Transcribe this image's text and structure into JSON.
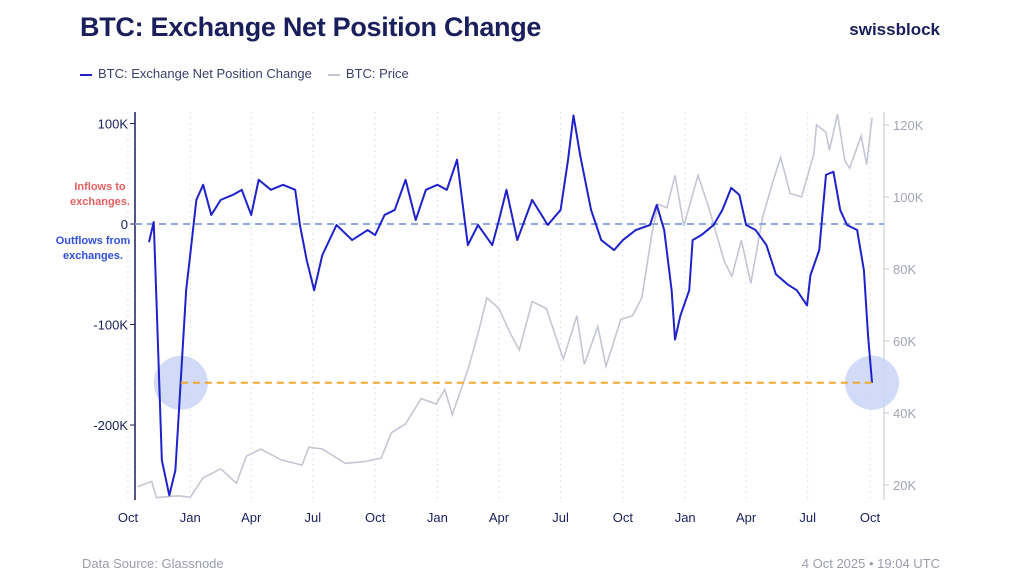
{
  "header": {
    "title": "BTC: Exchange Net Position Change",
    "brand": "swissblock"
  },
  "legend": [
    {
      "label": "BTC: Exchange Net Position Change",
      "color": "#1f22c9"
    },
    {
      "label": "BTC: Price",
      "color": "#c4c6d4"
    }
  ],
  "annotations": {
    "inflows": "Inflows to exchanges.",
    "outflows": "Outflows from exchanges.",
    "inflows_color": "#e86060",
    "outflows_color": "#3050d8"
  },
  "footer": {
    "source": "Data Source: Glassnode",
    "timestamp": "4 Oct 2025 • 19:04 UTC"
  },
  "chart_data": {
    "type": "line",
    "title": "BTC: Exchange Net Position Change",
    "x_ticks": [
      {
        "date": "2022-10-01",
        "label": "Oct"
      },
      {
        "date": "2023-01-01",
        "label": "Jan"
      },
      {
        "date": "2023-04-01",
        "label": "Apr"
      },
      {
        "date": "2023-07-01",
        "label": "Jul"
      },
      {
        "date": "2023-10-01",
        "label": "Oct"
      },
      {
        "date": "2024-01-01",
        "label": "Jan"
      },
      {
        "date": "2024-04-01",
        "label": "Apr"
      },
      {
        "date": "2024-07-01",
        "label": "Jul"
      },
      {
        "date": "2024-10-01",
        "label": "Oct"
      },
      {
        "date": "2025-01-01",
        "label": "Jan"
      },
      {
        "date": "2025-04-01",
        "label": "Apr"
      },
      {
        "date": "2025-07-01",
        "label": "Jul"
      },
      {
        "date": "2025-10-01",
        "label": "Oct"
      }
    ],
    "y_left": {
      "ticks": [
        {
          "v": 100000,
          "label": "100K"
        },
        {
          "v": 0,
          "label": "0"
        },
        {
          "v": -100000,
          "label": "-100K"
        },
        {
          "v": -200000,
          "label": "-200K"
        }
      ],
      "range": [
        -275000,
        112000
      ]
    },
    "y_right": {
      "ticks": [
        {
          "v": 120000,
          "label": "120K"
        },
        {
          "v": 100000,
          "label": "100K"
        },
        {
          "v": 80000,
          "label": "80K"
        },
        {
          "v": 60000,
          "label": "60K"
        },
        {
          "v": 40000,
          "label": "40K"
        },
        {
          "v": 20000,
          "label": "20K"
        }
      ],
      "range": [
        16000,
        123000
      ]
    },
    "grid": "vertical dotted at x ticks",
    "reference_lines": [
      {
        "value": 0,
        "color": "#8fa8e0",
        "style": "dashed"
      },
      {
        "value": -158000,
        "color": "#f0a830",
        "style": "dashed",
        "from": "2022-12-18",
        "to": "2025-10-04"
      }
    ],
    "highlights": [
      {
        "date": "2022-12-18",
        "value": -158000
      },
      {
        "date": "2025-10-04",
        "value": -158000
      }
    ],
    "series": [
      {
        "name": "BTC: Exchange Net Position Change",
        "axis": "left",
        "color": "#1f22c9",
        "points": [
          [
            "2022-11-01",
            -18000
          ],
          [
            "2022-11-08",
            2000
          ],
          [
            "2022-11-12",
            -75000
          ],
          [
            "2022-11-20",
            -235000
          ],
          [
            "2022-12-01",
            -270000
          ],
          [
            "2022-12-10",
            -245000
          ],
          [
            "2022-12-18",
            -155000
          ],
          [
            "2022-12-26",
            -65000
          ],
          [
            "2023-01-01",
            -30000
          ],
          [
            "2023-01-10",
            24000
          ],
          [
            "2023-01-20",
            39000
          ],
          [
            "2023-02-01",
            9000
          ],
          [
            "2023-02-15",
            24000
          ],
          [
            "2023-03-05",
            29000
          ],
          [
            "2023-03-18",
            34000
          ],
          [
            "2023-04-01",
            9000
          ],
          [
            "2023-04-12",
            44000
          ],
          [
            "2023-04-30",
            34000
          ],
          [
            "2023-05-18",
            39000
          ],
          [
            "2023-06-05",
            34000
          ],
          [
            "2023-06-12",
            -1000
          ],
          [
            "2023-06-22",
            -36000
          ],
          [
            "2023-07-03",
            -66000
          ],
          [
            "2023-07-15",
            -31000
          ],
          [
            "2023-08-05",
            -1000
          ],
          [
            "2023-08-28",
            -16000
          ],
          [
            "2023-09-20",
            -6000
          ],
          [
            "2023-10-01",
            -11000
          ],
          [
            "2023-10-15",
            9000
          ],
          [
            "2023-10-30",
            14000
          ],
          [
            "2023-11-15",
            44000
          ],
          [
            "2023-11-30",
            4000
          ],
          [
            "2023-12-15",
            34000
          ],
          [
            "2024-01-01",
            39000
          ],
          [
            "2024-01-15",
            34000
          ],
          [
            "2024-01-30",
            64000
          ],
          [
            "2024-02-15",
            -21000
          ],
          [
            "2024-03-01",
            -1000
          ],
          [
            "2024-03-22",
            -21000
          ],
          [
            "2024-04-01",
            4000
          ],
          [
            "2024-04-12",
            34000
          ],
          [
            "2024-04-28",
            -16000
          ],
          [
            "2024-05-20",
            24000
          ],
          [
            "2024-06-12",
            -1000
          ],
          [
            "2024-07-01",
            14000
          ],
          [
            "2024-07-12",
            64000
          ],
          [
            "2024-07-20",
            108000
          ],
          [
            "2024-07-30",
            68000
          ],
          [
            "2024-08-15",
            14000
          ],
          [
            "2024-08-30",
            -16000
          ],
          [
            "2024-09-18",
            -26000
          ],
          [
            "2024-10-01",
            -16000
          ],
          [
            "2024-10-20",
            -6000
          ],
          [
            "2024-11-10",
            -1000
          ],
          [
            "2024-11-20",
            19000
          ],
          [
            "2024-12-01",
            -6000
          ],
          [
            "2024-12-12",
            -66000
          ],
          [
            "2024-12-17",
            -115000
          ],
          [
            "2024-12-25",
            -91000
          ],
          [
            "2025-01-07",
            -66000
          ],
          [
            "2025-01-12",
            -16000
          ],
          [
            "2025-01-25",
            -11000
          ],
          [
            "2025-02-12",
            -1000
          ],
          [
            "2025-02-25",
            14000
          ],
          [
            "2025-03-10",
            36000
          ],
          [
            "2025-03-22",
            29000
          ],
          [
            "2025-04-01",
            -1000
          ],
          [
            "2025-04-15",
            -6000
          ],
          [
            "2025-05-01",
            -21000
          ],
          [
            "2025-05-15",
            -50000
          ],
          [
            "2025-06-01",
            -60000
          ],
          [
            "2025-06-15",
            -66000
          ],
          [
            "2025-06-30",
            -81000
          ],
          [
            "2025-07-05",
            -51000
          ],
          [
            "2025-07-18",
            -26000
          ],
          [
            "2025-07-28",
            49000
          ],
          [
            "2025-08-08",
            52000
          ],
          [
            "2025-08-18",
            14000
          ],
          [
            "2025-08-28",
            -1000
          ],
          [
            "2025-09-12",
            -6000
          ],
          [
            "2025-09-22",
            -46000
          ],
          [
            "2025-09-28",
            -110000
          ],
          [
            "2025-10-04",
            -158000
          ]
        ]
      },
      {
        "name": "BTC: Price",
        "axis": "right",
        "color": "#c4c6d4",
        "points": [
          [
            "2022-10-15",
            19500
          ],
          [
            "2022-11-05",
            21000
          ],
          [
            "2022-11-12",
            16500
          ],
          [
            "2022-12-15",
            17000
          ],
          [
            "2023-01-01",
            16600
          ],
          [
            "2023-01-20",
            22000
          ],
          [
            "2023-02-15",
            24500
          ],
          [
            "2023-03-10",
            20500
          ],
          [
            "2023-03-25",
            28000
          ],
          [
            "2023-04-15",
            30000
          ],
          [
            "2023-05-15",
            27000
          ],
          [
            "2023-06-15",
            25500
          ],
          [
            "2023-06-25",
            30500
          ],
          [
            "2023-07-15",
            30000
          ],
          [
            "2023-08-18",
            26000
          ],
          [
            "2023-09-15",
            26500
          ],
          [
            "2023-10-10",
            27500
          ],
          [
            "2023-10-25",
            34500
          ],
          [
            "2023-11-15",
            37000
          ],
          [
            "2023-12-08",
            44000
          ],
          [
            "2023-12-30",
            42500
          ],
          [
            "2024-01-12",
            46500
          ],
          [
            "2024-01-23",
            39500
          ],
          [
            "2024-02-15",
            52000
          ],
          [
            "2024-03-01",
            62000
          ],
          [
            "2024-03-14",
            72000
          ],
          [
            "2024-04-01",
            69000
          ],
          [
            "2024-04-18",
            62000
          ],
          [
            "2024-05-01",
            57500
          ],
          [
            "2024-05-20",
            71000
          ],
          [
            "2024-06-10",
            69000
          ],
          [
            "2024-07-05",
            55000
          ],
          [
            "2024-07-25",
            67000
          ],
          [
            "2024-08-05",
            53500
          ],
          [
            "2024-08-25",
            64000
          ],
          [
            "2024-09-06",
            53000
          ],
          [
            "2024-09-28",
            66000
          ],
          [
            "2024-10-15",
            67000
          ],
          [
            "2024-10-29",
            72000
          ],
          [
            "2024-11-13",
            90000
          ],
          [
            "2024-11-22",
            98000
          ],
          [
            "2024-12-05",
            97000
          ],
          [
            "2024-12-17",
            106000
          ],
          [
            "2024-12-30",
            92000
          ],
          [
            "2025-01-20",
            106000
          ],
          [
            "2025-02-05",
            97000
          ],
          [
            "2025-02-28",
            82000
          ],
          [
            "2025-03-11",
            78000
          ],
          [
            "2025-03-25",
            88000
          ],
          [
            "2025-04-08",
            76000
          ],
          [
            "2025-04-25",
            94000
          ],
          [
            "2025-05-10",
            104000
          ],
          [
            "2025-05-22",
            111000
          ],
          [
            "2025-06-05",
            101000
          ],
          [
            "2025-06-22",
            100000
          ],
          [
            "2025-07-10",
            112000
          ],
          [
            "2025-07-14",
            120000
          ],
          [
            "2025-07-28",
            118000
          ],
          [
            "2025-08-02",
            113000
          ],
          [
            "2025-08-14",
            123000
          ],
          [
            "2025-08-25",
            110000
          ],
          [
            "2025-09-01",
            108000
          ],
          [
            "2025-09-18",
            117000
          ],
          [
            "2025-09-26",
            109000
          ],
          [
            "2025-10-04",
            122000
          ]
        ]
      }
    ]
  }
}
